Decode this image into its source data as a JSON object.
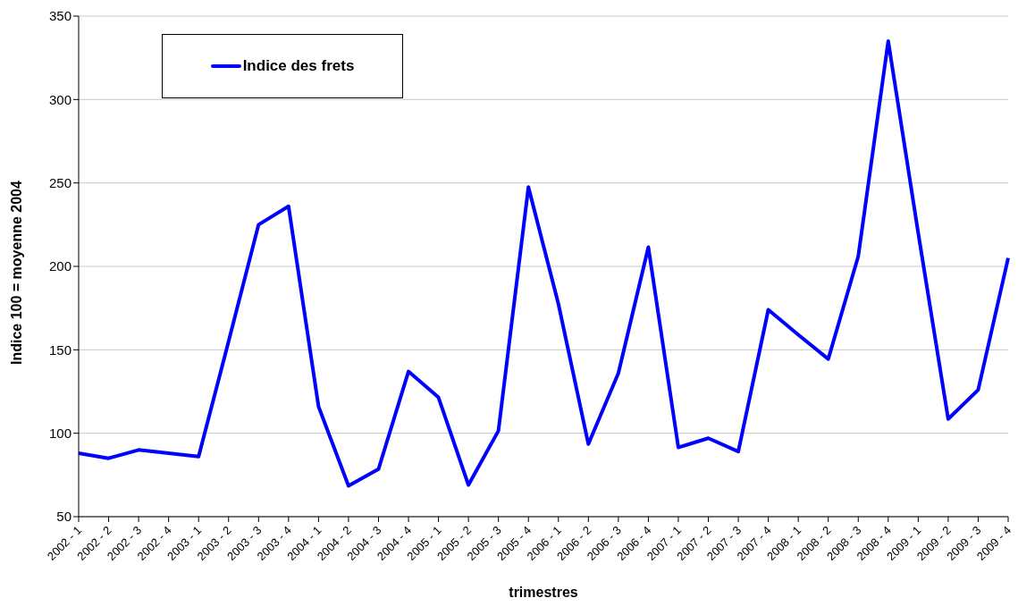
{
  "chart_data": {
    "type": "line",
    "xlabel": "trimestres",
    "ylabel": "Indice 100 = moyenne 2004",
    "categories": [
      "2002 - 1",
      "2002 - 2",
      "2002 - 3",
      "2002 - 4",
      "2003 - 1",
      "2003 - 2",
      "2003 - 3",
      "2003 - 4",
      "2004 - 1",
      "2004 - 2",
      "2004 - 3",
      "2004 - 4",
      "2005 - 1",
      "2005 - 2",
      "2005 - 3",
      "2005 - 4",
      "2006 - 1",
      "2006 - 2",
      "2006 - 3",
      "2006 - 4",
      "2007 - 1",
      "2007 - 2",
      "2007 - 3",
      "2007 - 4",
      "2008 - 1",
      "2008 - 2",
      "2008 - 3",
      "2008 - 4",
      "2009 - 1",
      "2009 - 2",
      "2009 - 3",
      "2009 - 4"
    ],
    "series": [
      {
        "name": "Indice des frets",
        "color": "#0000ff",
        "values": [
          88,
          85,
          90,
          88,
          86,
          155,
          225,
          236,
          116,
          68.5,
          78.5,
          137,
          121.5,
          69,
          101.5,
          247.5,
          177.5,
          93.5,
          136,
          211.5,
          91.5,
          97,
          89,
          174,
          159,
          144.5,
          206,
          335,
          220,
          108.5,
          126,
          205
        ]
      }
    ],
    "ylim": [
      50,
      350
    ],
    "yticks": [
      50,
      100,
      150,
      200,
      250,
      300,
      350
    ],
    "grid": "y",
    "legend": "top left",
    "marker": "none",
    "line_style": "solid"
  }
}
